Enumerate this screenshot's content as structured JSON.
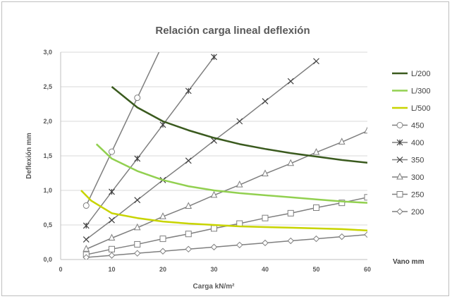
{
  "chart_data": {
    "type": "line",
    "title": "Relación carga lineal deflexión",
    "xlabel": "Carga kN/m²",
    "ylabel": "Deflexión mm",
    "xlim": [
      0,
      60
    ],
    "ylim": [
      0,
      3.0
    ],
    "x_ticks": [
      "0",
      "10",
      "20",
      "30",
      "40",
      "50",
      "60"
    ],
    "y_ticks": [
      "0,0",
      "0,5",
      "1,0",
      "1,5",
      "2,0",
      "2,5",
      "3,0"
    ],
    "grid": "horizontal",
    "legend_position": "right",
    "legend_title": "Vano  mm",
    "limit_series": [
      {
        "name": "L/200",
        "color": "#3a5a1e",
        "width": 2.5,
        "x": [
          10,
          15,
          20,
          25,
          30,
          35,
          40,
          45,
          50,
          55,
          60
        ],
        "y": [
          2.5,
          2.2,
          2.0,
          1.87,
          1.76,
          1.67,
          1.6,
          1.54,
          1.49,
          1.44,
          1.4
        ]
      },
      {
        "name": "L/300",
        "color": "#92d050",
        "width": 2.5,
        "x": [
          7,
          10,
          15,
          20,
          25,
          30,
          35,
          40,
          45,
          50,
          55,
          60
        ],
        "y": [
          1.67,
          1.46,
          1.28,
          1.15,
          1.06,
          1.0,
          0.96,
          0.93,
          0.9,
          0.87,
          0.84,
          0.82
        ]
      },
      {
        "name": "L/500",
        "color": "#c8d400",
        "width": 2.5,
        "x": [
          4,
          6,
          10,
          15,
          20,
          25,
          30,
          35,
          40,
          45,
          50,
          55,
          60
        ],
        "y": [
          1.0,
          0.85,
          0.67,
          0.6,
          0.55,
          0.52,
          0.5,
          0.48,
          0.47,
          0.46,
          0.45,
          0.44,
          0.42
        ]
      }
    ],
    "span_series": [
      {
        "name": "450",
        "marker": "circle",
        "x": [
          5,
          10,
          15,
          20
        ],
        "y": [
          0.78,
          1.56,
          2.34,
          3.12
        ]
      },
      {
        "name": "400",
        "marker": "asterisk",
        "x": [
          5,
          10,
          15,
          20,
          25,
          30
        ],
        "y": [
          0.49,
          0.98,
          1.46,
          1.95,
          2.44,
          2.93
        ]
      },
      {
        "name": "350",
        "marker": "x",
        "x": [
          5,
          10,
          15,
          20,
          25,
          30,
          35,
          40,
          45,
          50
        ],
        "y": [
          0.29,
          0.57,
          0.86,
          1.15,
          1.43,
          1.72,
          2.0,
          2.29,
          2.58,
          2.87
        ]
      },
      {
        "name": "300",
        "marker": "triangle",
        "x": [
          5,
          10,
          15,
          20,
          25,
          30,
          35,
          40,
          45,
          50,
          55,
          60
        ],
        "y": [
          0.15,
          0.31,
          0.46,
          0.62,
          0.77,
          0.93,
          1.08,
          1.24,
          1.39,
          1.55,
          1.7,
          1.86
        ]
      },
      {
        "name": "250",
        "marker": "square",
        "x": [
          5,
          10,
          15,
          20,
          25,
          30,
          35,
          40,
          45,
          50,
          55,
          60
        ],
        "y": [
          0.07,
          0.15,
          0.22,
          0.3,
          0.37,
          0.45,
          0.52,
          0.6,
          0.67,
          0.75,
          0.82,
          0.9
        ]
      },
      {
        "name": "200",
        "marker": "diamond",
        "x": [
          5,
          10,
          15,
          20,
          25,
          30,
          35,
          40,
          45,
          50,
          55,
          60
        ],
        "y": [
          0.03,
          0.06,
          0.09,
          0.12,
          0.15,
          0.18,
          0.21,
          0.24,
          0.27,
          0.3,
          0.33,
          0.36
        ]
      }
    ],
    "marker_color": "#7f7f7f"
  }
}
